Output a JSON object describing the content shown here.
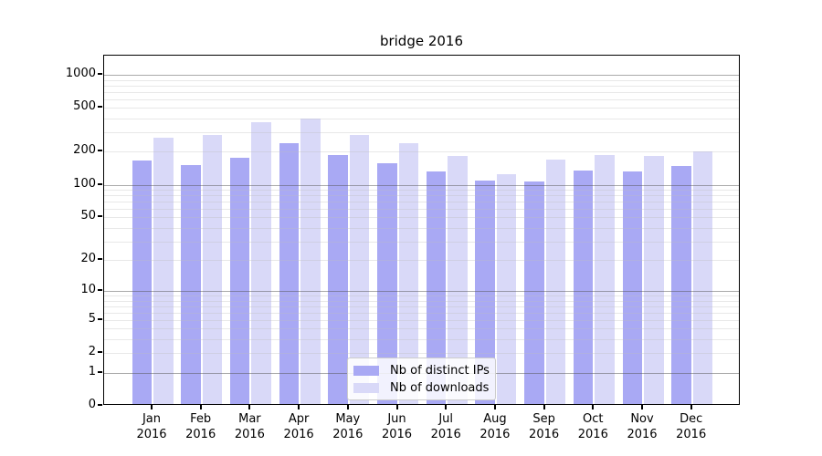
{
  "chart_data": {
    "type": "bar",
    "title": "bridge 2016",
    "categories": [
      "Jan",
      "Feb",
      "Mar",
      "Apr",
      "May",
      "Jun",
      "Jul",
      "Aug",
      "Sep",
      "Oct",
      "Nov",
      "Dec"
    ],
    "x_tick_second_line": "2016",
    "series": [
      {
        "name": "Nb of distinct IPs",
        "color": "#a9a9f4",
        "values": [
          160,
          145,
          170,
          230,
          180,
          152,
          127,
          104,
          103,
          130,
          128,
          142
        ]
      },
      {
        "name": "Nb of downloads",
        "color": "#d9d9f8",
        "values": [
          260,
          272,
          355,
          383,
          272,
          230,
          175,
          120,
          162,
          178,
          175,
          195
        ]
      }
    ],
    "y_ticks": [
      0,
      1,
      2,
      5,
      10,
      20,
      50,
      100,
      200,
      500,
      1000
    ],
    "y_scale": "log10(1+v)",
    "ylim": [
      0,
      1500
    ],
    "xlabel": "",
    "ylabel": "",
    "grid": "horizontal, major (1,10,100,1000) and minor (2-9 per decade), drawn over translucent bars",
    "legend_position": "inside bottom-center",
    "axis_color": "#000000",
    "major_grid_color": "#aaaaaa",
    "minor_grid_color": "#e8e8e8",
    "background_color": "#ffffff"
  }
}
